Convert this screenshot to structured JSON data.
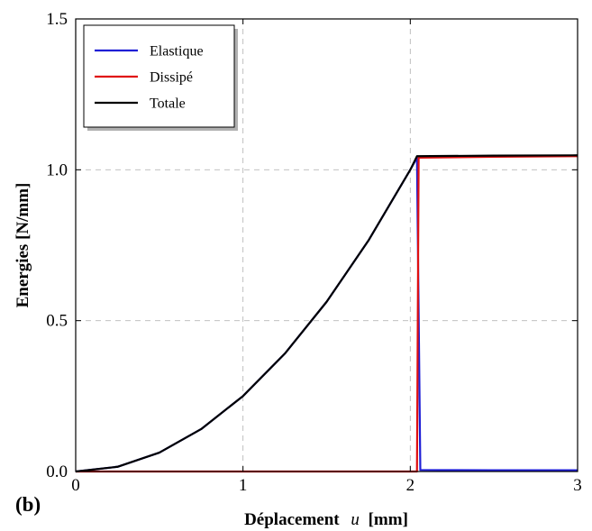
{
  "panel_label": "(b)",
  "chart_data": {
    "type": "line",
    "xlabel_main": "Déplacement",
    "xlabel_var": "u",
    "xlabel_unit": "[mm]",
    "ylabel": "Energies  [N/mm]",
    "xlim": [
      0,
      3
    ],
    "ylim": [
      0,
      1.5
    ],
    "x_ticks": [
      0,
      1,
      2,
      3
    ],
    "x_tick_labels": [
      "0",
      "1",
      "2",
      "3"
    ],
    "y_ticks": [
      0.0,
      0.5,
      1.0,
      1.5
    ],
    "y_tick_labels": [
      "0.0",
      "0.5",
      "1.0",
      "1.5"
    ],
    "grid": true,
    "legend_position": "top-left",
    "series": [
      {
        "name": "Elastique",
        "color": "#1f1fd6",
        "x": [
          0,
          0.25,
          0.5,
          0.75,
          1.0,
          1.25,
          1.5,
          1.75,
          2.0,
          2.04,
          2.06,
          2.5,
          3.0
        ],
        "y": [
          0,
          0.0156,
          0.0625,
          0.1406,
          0.25,
          0.3906,
          0.5625,
          0.7656,
          1.0,
          1.04,
          0.005,
          0.004,
          0.004
        ]
      },
      {
        "name": "Dissipé",
        "color": "#e01010",
        "x": [
          0,
          2.04,
          2.05,
          2.5,
          3.0
        ],
        "y": [
          0,
          0,
          1.04,
          1.043,
          1.045
        ]
      },
      {
        "name": "Totale",
        "color": "#000000",
        "x": [
          0,
          0.25,
          0.5,
          0.75,
          1.0,
          1.25,
          1.5,
          1.75,
          2.0,
          2.04,
          2.5,
          3.0
        ],
        "y": [
          0,
          0.0156,
          0.0625,
          0.1406,
          0.25,
          0.3906,
          0.5625,
          0.7656,
          1.0,
          1.045,
          1.047,
          1.048
        ]
      }
    ]
  }
}
